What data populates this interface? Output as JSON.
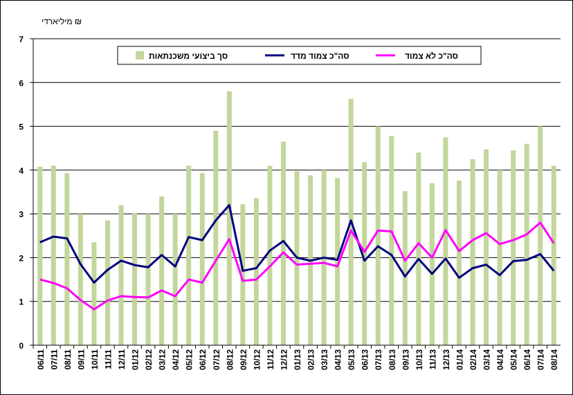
{
  "chart_data": {
    "type": "bar",
    "y_label": "מיליארדי ₪",
    "categories": [
      "06/11",
      "07/11",
      "08/11",
      "09/11",
      "10/11",
      "11/11",
      "12/11",
      "01/12",
      "02/12",
      "03/12",
      "04/12",
      "05/12",
      "06/12",
      "07/12",
      "08/12",
      "09/12",
      "10/12",
      "11/12",
      "12/12",
      "01/13",
      "02/13",
      "03/13",
      "04/13",
      "05/13",
      "06/13",
      "07/13",
      "08/13",
      "09/13",
      "10/13",
      "11/13",
      "12/13",
      "01/14",
      "02/14",
      "03/14",
      "04/14",
      "05/14",
      "06/14",
      "07/14",
      "08/14"
    ],
    "series": [
      {
        "name": "סך ביצועי משכנתאות",
        "type": "bar",
        "color": "#c3d69b",
        "values": [
          4.08,
          4.1,
          3.93,
          3.0,
          2.35,
          2.85,
          3.2,
          3.02,
          3.0,
          3.4,
          3.0,
          4.1,
          3.93,
          4.9,
          5.8,
          3.22,
          3.36,
          4.1,
          4.65,
          3.97,
          3.88,
          4.0,
          3.82,
          5.63,
          4.18,
          5.0,
          4.78,
          3.52,
          4.4,
          3.7,
          4.75,
          3.76,
          4.25,
          4.47,
          4.0,
          4.45,
          4.6,
          5.0,
          4.1
        ]
      },
      {
        "name": "סה\"כ צמוד מדד",
        "type": "line",
        "color": "#000080",
        "values": [
          2.35,
          2.48,
          2.44,
          1.85,
          1.43,
          1.72,
          1.93,
          1.83,
          1.78,
          2.06,
          1.8,
          2.47,
          2.4,
          2.85,
          3.2,
          1.7,
          1.76,
          2.16,
          2.38,
          2.0,
          1.93,
          2.0,
          1.95,
          2.85,
          1.93,
          2.26,
          2.06,
          1.57,
          1.97,
          1.63,
          1.98,
          1.54,
          1.76,
          1.84,
          1.6,
          1.92,
          1.95,
          2.08,
          1.7
        ]
      },
      {
        "name": "סה\"כ לא צמוד",
        "type": "line",
        "color": "#ff00ff",
        "values": [
          1.5,
          1.42,
          1.3,
          1.03,
          0.82,
          1.02,
          1.12,
          1.1,
          1.09,
          1.25,
          1.12,
          1.5,
          1.43,
          1.93,
          2.42,
          1.47,
          1.5,
          1.8,
          2.12,
          1.84,
          1.86,
          1.88,
          1.8,
          2.62,
          2.13,
          2.62,
          2.6,
          1.93,
          2.33,
          2.0,
          2.63,
          2.15,
          2.4,
          2.56,
          2.31,
          2.4,
          2.53,
          2.8,
          2.33
        ]
      }
    ],
    "ylim": [
      0,
      7
    ],
    "yticks": [
      0,
      1,
      2,
      3,
      4,
      5,
      6,
      7
    ],
    "grid": true,
    "legend": "top"
  }
}
